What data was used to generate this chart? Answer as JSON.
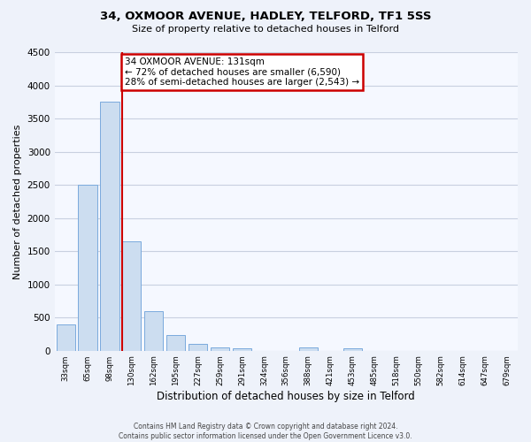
{
  "title": "34, OXMOOR AVENUE, HADLEY, TELFORD, TF1 5SS",
  "subtitle": "Size of property relative to detached houses in Telford",
  "xlabel": "Distribution of detached houses by size in Telford",
  "ylabel": "Number of detached properties",
  "bar_color": "#ccddf0",
  "bar_edge_color": "#7aaadd",
  "categories": [
    "33sqm",
    "65sqm",
    "98sqm",
    "130sqm",
    "162sqm",
    "195sqm",
    "227sqm",
    "259sqm",
    "291sqm",
    "324sqm",
    "356sqm",
    "388sqm",
    "421sqm",
    "453sqm",
    "485sqm",
    "518sqm",
    "550sqm",
    "582sqm",
    "614sqm",
    "647sqm",
    "679sqm"
  ],
  "values": [
    390,
    2500,
    3750,
    1650,
    600,
    240,
    100,
    55,
    30,
    0,
    0,
    45,
    0,
    30,
    0,
    0,
    0,
    0,
    0,
    0,
    0
  ],
  "property_line_index": 3,
  "property_line_color": "#cc0000",
  "annotation_title": "34 OXMOOR AVENUE: 131sqm",
  "annotation_line1": "← 72% of detached houses are smaller (6,590)",
  "annotation_line2": "28% of semi-detached houses are larger (2,543) →",
  "annotation_box_color": "#ffffff",
  "annotation_box_edge_color": "#cc0000",
  "ylim": [
    0,
    4500
  ],
  "yticks": [
    0,
    500,
    1000,
    1500,
    2000,
    2500,
    3000,
    3500,
    4000,
    4500
  ],
  "footer_line1": "Contains HM Land Registry data © Crown copyright and database right 2024.",
  "footer_line2": "Contains public sector information licensed under the Open Government Licence v3.0.",
  "background_color": "#eef2fa",
  "plot_background_color": "#f5f8ff",
  "grid_color": "#c8d0e0"
}
